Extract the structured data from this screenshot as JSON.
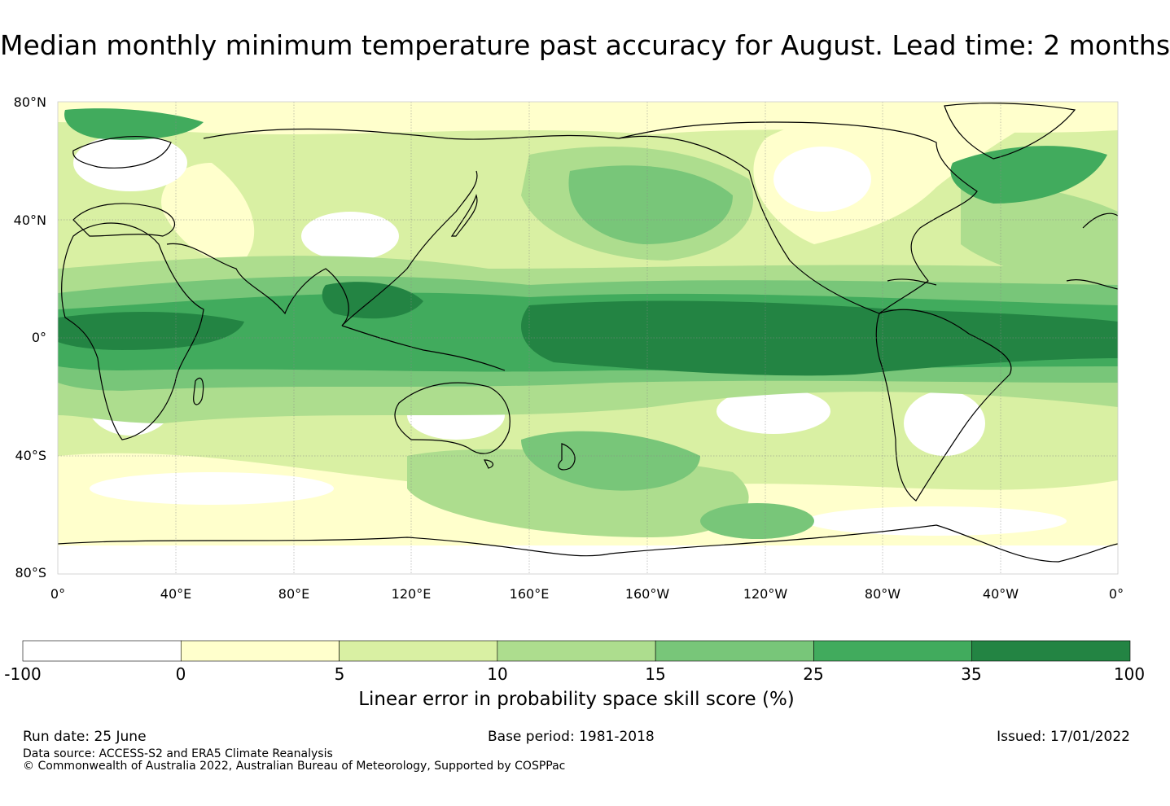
{
  "title": "Median monthly minimum temperature past accuracy for August. Lead time: 2 months",
  "map": {
    "lat_labels": [
      "80°N",
      "40°N",
      "0°",
      "40°S",
      "80°S"
    ],
    "lon_labels": [
      "0°",
      "40°E",
      "80°E",
      "120°E",
      "160°E",
      "160°W",
      "120°W",
      "80°W",
      "40°W",
      "0°"
    ],
    "projection": "plate carree, centred on 180°",
    "gridlines": true
  },
  "colorbar": {
    "ticks": [
      "-100",
      "0",
      "5",
      "10",
      "15",
      "25",
      "35",
      "100"
    ],
    "colors": [
      "#ffffff",
      "#ffffcc",
      "#d9f0a3",
      "#addd8e",
      "#78c679",
      "#41ab5d",
      "#238443"
    ],
    "label": "Linear error in probability space skill score (%)"
  },
  "footer": {
    "run_date": "Run date: 25 June",
    "base_period": "Base period: 1981-2018",
    "issued": "Issued: 17/01/2022",
    "data_source": "Data source: ACCESS-S2 and ERA5 Climate Reanalysis",
    "copyright": "© Commonwealth of Australia 2022, Australian Bureau of Meteorology, Supported by COSPPac"
  }
}
